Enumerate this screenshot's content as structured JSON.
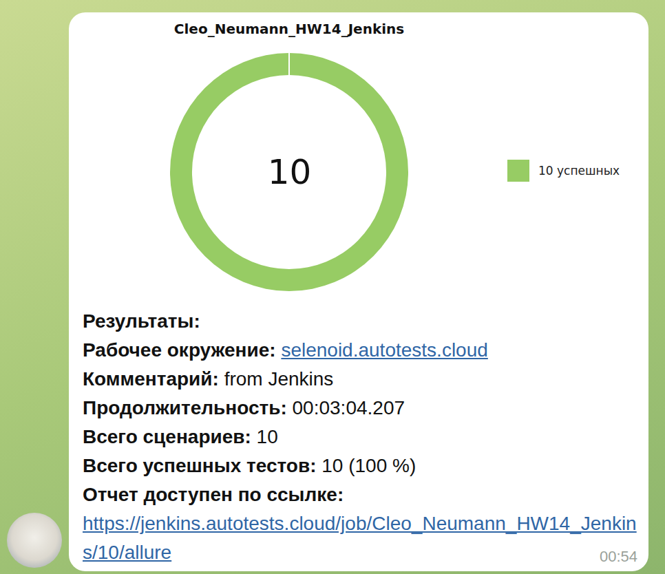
{
  "chart_data": {
    "type": "donut",
    "title": "Cleo_Neumann_HW14_Jenkins",
    "categories": [
      "10 успешных"
    ],
    "values": [
      10
    ],
    "colors": [
      "#97cc64"
    ],
    "total": 10
  },
  "message": {
    "heading": "Результаты:",
    "fields": [
      {
        "label": "Рабочее окружение:",
        "value": "selenoid.autotests.cloud",
        "link": true
      },
      {
        "label": "Комментарий:",
        "value": "from Jenkins",
        "link": false
      },
      {
        "label": "Продолжительность:",
        "value": "00:03:04.207",
        "link": false
      },
      {
        "label": "Всего сценариев:",
        "value": "10",
        "link": false
      },
      {
        "label": "Всего успешных тестов:",
        "value": "10 (100 %)",
        "link": false
      }
    ],
    "report_label": "Отчет доступен по ссылке:",
    "report_link": "https://jenkins.autotests.cloud/job/Cleo_Neumann_HW14_Jenkins/10/allure",
    "time": "00:54"
  }
}
